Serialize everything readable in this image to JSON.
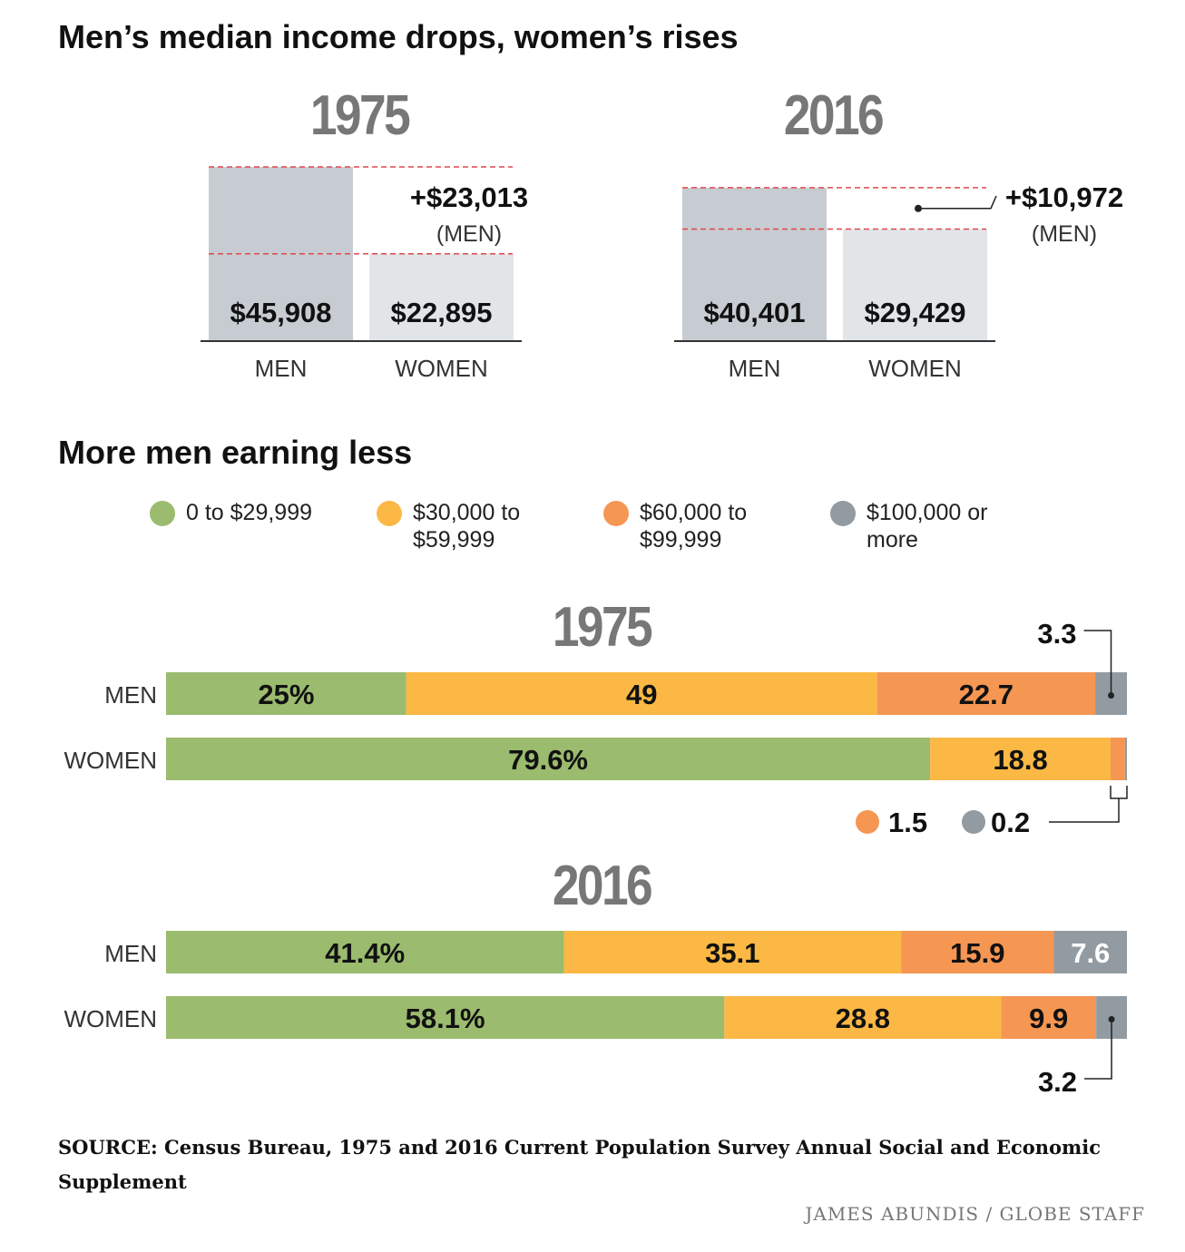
{
  "headline1": "Men’s median income drops, women’s rises",
  "headline2": "More men earning less",
  "chart_data": [
    {
      "type": "bar",
      "title": "Men’s median income drops, women’s rises",
      "panels": [
        {
          "year": "1975",
          "categories": [
            "MEN",
            "WOMEN"
          ],
          "values": [
            45908,
            22895
          ],
          "value_labels": [
            "$45,908",
            "$22,895"
          ],
          "gap_label": "+$23,013",
          "gap_sub": "(MEN)"
        },
        {
          "year": "2016",
          "categories": [
            "MEN",
            "WOMEN"
          ],
          "values": [
            40401,
            29429
          ],
          "value_labels": [
            "$40,401",
            "$29,429"
          ],
          "gap_label": "+$10,972",
          "gap_sub": "(MEN)"
        }
      ],
      "ylim": [
        0,
        50000
      ]
    },
    {
      "type": "bar",
      "stacked": true,
      "orientation": "horizontal",
      "title": "More men earning less",
      "legend": [
        {
          "label": "0 to $29,999",
          "color": "#9bbb6e"
        },
        {
          "label": "$30,000 to $59,999",
          "color": "#fbb844"
        },
        {
          "label": "$60,000 to $99,999",
          "color": "#f59653"
        },
        {
          "label": "$100,000 or more",
          "color": "#929ba2"
        }
      ],
      "groups": [
        {
          "year": "1975",
          "rows": [
            {
              "label": "MEN",
              "values": [
                25,
                49,
                22.7,
                3.3
              ],
              "labels": [
                "25%",
                "49",
                "22.7",
                "3.3"
              ]
            },
            {
              "label": "WOMEN",
              "values": [
                79.6,
                18.8,
                1.5,
                0.2
              ],
              "labels": [
                "79.6%",
                "18.8",
                "1.5",
                "0.2"
              ]
            }
          ]
        },
        {
          "year": "2016",
          "rows": [
            {
              "label": "MEN",
              "values": [
                41.4,
                35.1,
                15.9,
                7.6
              ],
              "labels": [
                "41.4%",
                "35.1",
                "15.9",
                "7.6"
              ]
            },
            {
              "label": "WOMEN",
              "values": [
                58.1,
                28.8,
                9.9,
                3.2
              ],
              "labels": [
                "58.1%",
                "28.8",
                "9.9",
                "3.2"
              ]
            }
          ]
        }
      ]
    }
  ],
  "legend_lines": [
    [
      "0 to $29,999"
    ],
    [
      "$30,000 to",
      "$59,999"
    ],
    [
      "$60,000 to",
      "$99,999"
    ],
    [
      "$100,000 or",
      "more"
    ]
  ],
  "source": "SOURCE: Census Bureau, 1975 and 2016 Current Population Survey Annual Social and Economic Supplement",
  "credit": "JAMES ABUNDIS / GLOBE STAFF"
}
